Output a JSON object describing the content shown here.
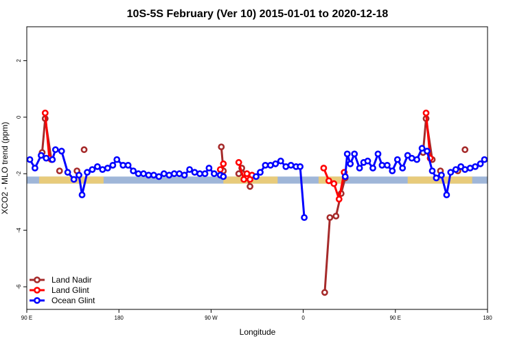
{
  "chart_data": {
    "type": "line",
    "title": "10S-5S February (Ver 10)   2015-01-01 to 2020-12-18",
    "xlabel": "Longitude",
    "ylabel": "XCO2 - MLO trend (ppm)",
    "xlim": [
      0,
      450
    ],
    "ylim": [
      -6.8,
      3.2
    ],
    "x_ticks": [
      {
        "value": 0,
        "label": "90 E"
      },
      {
        "value": 90,
        "label": "180"
      },
      {
        "value": 180,
        "label": "90 W"
      },
      {
        "value": 270,
        "label": "0"
      },
      {
        "value": 360,
        "label": "90 E"
      },
      {
        "value": 450,
        "label": "180"
      }
    ],
    "y_ticks": [
      2,
      0,
      -2,
      -4,
      -6
    ],
    "band": {
      "y_from": -2.35,
      "y_to": -2.1,
      "color": "#9fb6d8"
    },
    "land_segments": [
      {
        "x_from": 12,
        "x_to": 75
      },
      {
        "x_from": 192,
        "x_to": 245
      },
      {
        "x_from": 285,
        "x_to": 310
      },
      {
        "x_from": 372,
        "x_to": 435
      }
    ],
    "land_color": "#f5cf6b",
    "series": [
      {
        "name": "Land Nadir",
        "color": "#a52a2a",
        "segments": [
          [
            [
              15,
              -1.25
            ],
            [
              18,
              -0.05
            ],
            [
              24,
              -1.5
            ]
          ],
          [
            [
              32,
              -1.9
            ]
          ],
          [
            [
              49,
              -1.9
            ]
          ],
          [
            [
              56,
              -1.15
            ]
          ],
          [
            [
              190,
              -1.05
            ],
            [
              192,
              -1.9
            ]
          ],
          [
            [
              207,
              -2.0
            ]
          ],
          [
            [
              210,
              -1.8
            ],
            [
              215,
              -2.1
            ],
            [
              218,
              -2.45
            ]
          ],
          [
            [
              291,
              -6.2
            ],
            [
              296,
              -3.55
            ],
            [
              302,
              -3.5
            ],
            [
              307,
              -2.7
            ],
            [
              311,
              -2.15
            ]
          ],
          [
            [
              387,
              -1.25
            ],
            [
              390,
              -0.05
            ],
            [
              396,
              -1.5
            ]
          ],
          [
            [
              404,
              -1.9
            ]
          ],
          [
            [
              421,
              -1.9
            ]
          ],
          [
            [
              428,
              -1.15
            ]
          ]
        ]
      },
      {
        "name": "Land Glint",
        "color": "#ff0000",
        "segments": [
          [
            [
              18,
              0.15
            ],
            [
              22,
              -1.45
            ]
          ],
          [
            [
              189,
              -1.85
            ],
            [
              192,
              -1.65
            ]
          ],
          [
            [
              207,
              -1.6
            ],
            [
              212,
              -2.2
            ]
          ],
          [
            [
              215,
              -2.0
            ],
            [
              218,
              -2.2
            ]
          ],
          [
            [
              220,
              -2.05
            ]
          ],
          [
            [
              290,
              -1.8
            ],
            [
              295,
              -2.25
            ],
            [
              300,
              -2.35
            ],
            [
              305,
              -2.9
            ],
            [
              310,
              -1.95
            ]
          ],
          [
            [
              390,
              0.15
            ],
            [
              394,
              -1.45
            ]
          ]
        ]
      },
      {
        "name": "Ocean Glint",
        "color": "#0000ff",
        "segments": [
          [
            [
              3,
              -1.5
            ],
            [
              8,
              -1.8
            ],
            [
              14,
              -1.35
            ],
            [
              19,
              -1.45
            ],
            [
              25,
              -1.5
            ],
            [
              28,
              -1.15
            ],
            [
              34,
              -1.2
            ],
            [
              40,
              -1.95
            ],
            [
              46,
              -2.2
            ],
            [
              51,
              -2.05
            ],
            [
              54,
              -2.75
            ],
            [
              59,
              -1.95
            ],
            [
              64,
              -1.85
            ],
            [
              69,
              -1.75
            ],
            [
              74,
              -1.85
            ],
            [
              79,
              -1.8
            ],
            [
              84,
              -1.7
            ],
            [
              88,
              -1.5
            ],
            [
              94,
              -1.7
            ],
            [
              99,
              -1.7
            ],
            [
              104,
              -1.9
            ],
            [
              109,
              -2.0
            ],
            [
              114,
              -2.0
            ],
            [
              119,
              -2.05
            ],
            [
              124,
              -2.05
            ],
            [
              129,
              -2.1
            ],
            [
              134,
              -2.0
            ],
            [
              139,
              -2.05
            ],
            [
              144,
              -2.0
            ],
            [
              149,
              -2.0
            ],
            [
              154,
              -2.05
            ],
            [
              159,
              -1.85
            ],
            [
              164,
              -1.95
            ],
            [
              169,
              -2.0
            ],
            [
              174,
              -2.0
            ],
            [
              178,
              -1.8
            ],
            [
              183,
              -2.0
            ],
            [
              189,
              -2.05
            ],
            [
              192,
              -2.1
            ]
          ],
          [
            [
              224,
              -2.1
            ],
            [
              228,
              -1.95
            ],
            [
              233,
              -1.7
            ],
            [
              238,
              -1.7
            ],
            [
              243,
              -1.65
            ],
            [
              248,
              -1.55
            ],
            [
              253,
              -1.75
            ],
            [
              258,
              -1.7
            ],
            [
              263,
              -1.75
            ],
            [
              267,
              -1.75
            ],
            [
              271,
              -3.55
            ]
          ],
          [
            [
              311,
              -2.1
            ],
            [
              313,
              -1.3
            ],
            [
              316,
              -1.65
            ],
            [
              320,
              -1.3
            ],
            [
              325,
              -1.8
            ],
            [
              329,
              -1.6
            ],
            [
              333,
              -1.55
            ],
            [
              338,
              -1.8
            ],
            [
              343,
              -1.3
            ],
            [
              347,
              -1.7
            ],
            [
              352,
              -1.7
            ],
            [
              357,
              -1.9
            ],
            [
              362,
              -1.5
            ],
            [
              367,
              -1.8
            ],
            [
              372,
              -1.35
            ],
            [
              376,
              -1.45
            ],
            [
              381,
              -1.5
            ],
            [
              386,
              -1.1
            ],
            [
              391,
              -1.2
            ],
            [
              396,
              -1.9
            ],
            [
              400,
              -2.15
            ],
            [
              405,
              -2.05
            ],
            [
              410,
              -2.75
            ],
            [
              414,
              -1.95
            ],
            [
              419,
              -1.85
            ],
            [
              424,
              -1.75
            ],
            [
              428,
              -1.85
            ],
            [
              433,
              -1.8
            ],
            [
              438,
              -1.75
            ],
            [
              443,
              -1.65
            ],
            [
              447,
              -1.5
            ]
          ]
        ]
      }
    ],
    "legend": {
      "position": "bottom-left"
    }
  }
}
